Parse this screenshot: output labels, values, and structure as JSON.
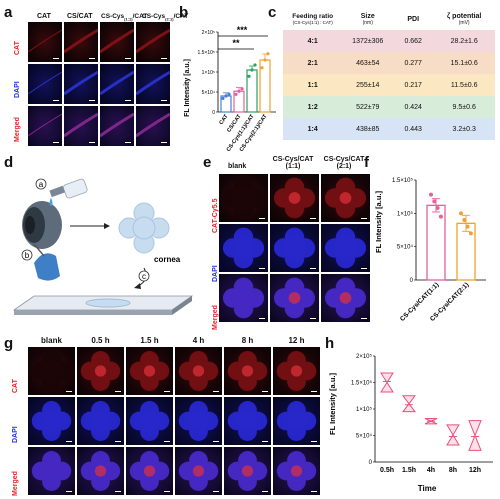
{
  "panels": {
    "a": "a",
    "b": "b",
    "c": "c",
    "d": "d",
    "e": "e",
    "f": "f",
    "g": "g",
    "h": "h"
  },
  "a": {
    "cols": [
      "CAT",
      "CS/CAT",
      "CS-Cys",
      "CS-Cys/CAT"
    ],
    "col_full": [
      "CAT",
      "CS/CAT",
      "CS-Cys(1:1)/CAT",
      "CS-Cys(2:1)/CAT"
    ],
    "rows": [
      "CAT",
      "DAPI",
      "Merged"
    ],
    "colors": {
      "red": "#e0242a",
      "blue": "#2234d8",
      "purple": "#e0242a"
    }
  },
  "b": {
    "ylabel": "FL Intensity [a.u.]",
    "yticks": [
      "0",
      "5×10⁴",
      "1×10⁵",
      "1.5×10⁵",
      "2×10⁵"
    ],
    "sig": [
      "***",
      "**"
    ]
  },
  "chart_b": {
    "type": "bar",
    "categories": [
      "CAT",
      "CS/CAT",
      "CS-Cys(1:1)/CAT",
      "CS-Cys(2:1)/CAT"
    ],
    "values": [
      40000,
      52000,
      105000,
      130000
    ],
    "errors": [
      8000,
      9000,
      10000,
      15000
    ],
    "colors": [
      "#4a7fd8",
      "#e6609c",
      "#2ea060",
      "#f0a030"
    ],
    "ylim": [
      0,
      200000
    ]
  },
  "c": {
    "headers": [
      "Feeding ratio",
      "Size",
      "PDI",
      "ζ potential"
    ],
    "subheaders": [
      "(CS-Cys(1:1) : CAT)",
      "(nm)",
      "",
      "(mV)"
    ],
    "rows": [
      [
        "4:1",
        "1372±306",
        "0.662",
        "28.2±1.6"
      ],
      [
        "2:1",
        "463±54",
        "0.277",
        "15.1±0.6"
      ],
      [
        "1:1",
        "255±14",
        "0.217",
        "11.5±0.6"
      ],
      [
        "1:2",
        "522±79",
        "0.424",
        "9.5±0.6"
      ],
      [
        "1:4",
        "438±85",
        "0.443",
        "3.2±0.3"
      ]
    ],
    "row_colors": [
      "#f3d9de",
      "#f7dcc6",
      "#fbe8c2",
      "#d7ecd9",
      "#d6e4f5"
    ]
  },
  "d": {
    "steps": [
      "a",
      "b",
      "c"
    ],
    "cornea": "cornea"
  },
  "e": {
    "cols": [
      "blank",
      "CS-Cys/CAT",
      "CS-Cys/CAT"
    ],
    "col_ratio": [
      "",
      "(1:1)",
      "(2:1)"
    ],
    "rows": [
      "CAT-Cy5.5",
      "DAPI",
      "Merged"
    ]
  },
  "f": {
    "ylabel": "FL Intensity [a.u.]",
    "yticks": [
      "0",
      "5×10⁴",
      "1×10⁵",
      "1.5×10⁵"
    ],
    "xlabels": [
      "CS-Cys/CAT(1:1)",
      "CS-Cys/CAT(2:1)"
    ]
  },
  "chart_f": {
    "type": "bar",
    "categories": [
      "CS-Cys/CAT(1:1)",
      "CS-Cys/CAT(2:1)"
    ],
    "values": [
      112000,
      85000
    ],
    "errors": [
      10000,
      12000
    ],
    "points": [
      [
        128000,
        118000,
        108000,
        95000
      ],
      [
        100000,
        90000,
        80000,
        70000
      ]
    ],
    "colors": [
      "#e6609c",
      "#f0a030"
    ],
    "ylim": [
      0,
      150000
    ]
  },
  "g": {
    "cols": [
      "blank",
      "0.5 h",
      "1.5 h",
      "4 h",
      "8 h",
      "12 h"
    ],
    "rows": [
      "CAT",
      "DAPI",
      "Merged"
    ]
  },
  "h": {
    "ylabel": "FL Intensity [a.u.]",
    "xlabel": "Time",
    "yticks": [
      "0",
      "5×10⁴",
      "1×10⁵",
      "1.5×10⁵",
      "2×10⁵"
    ]
  },
  "chart_h": {
    "type": "box",
    "categories": [
      "0.5h",
      "1.5h",
      "4h",
      "8h",
      "12h"
    ],
    "ranges": [
      [
        132000,
        168000
      ],
      [
        95000,
        125000
      ],
      [
        72000,
        82000
      ],
      [
        32000,
        70000
      ],
      [
        22000,
        78000
      ]
    ],
    "medians": [
      152000,
      108000,
      77000,
      48000,
      48000
    ],
    "color": "#e8507a",
    "ylim": [
      0,
      200000
    ]
  }
}
